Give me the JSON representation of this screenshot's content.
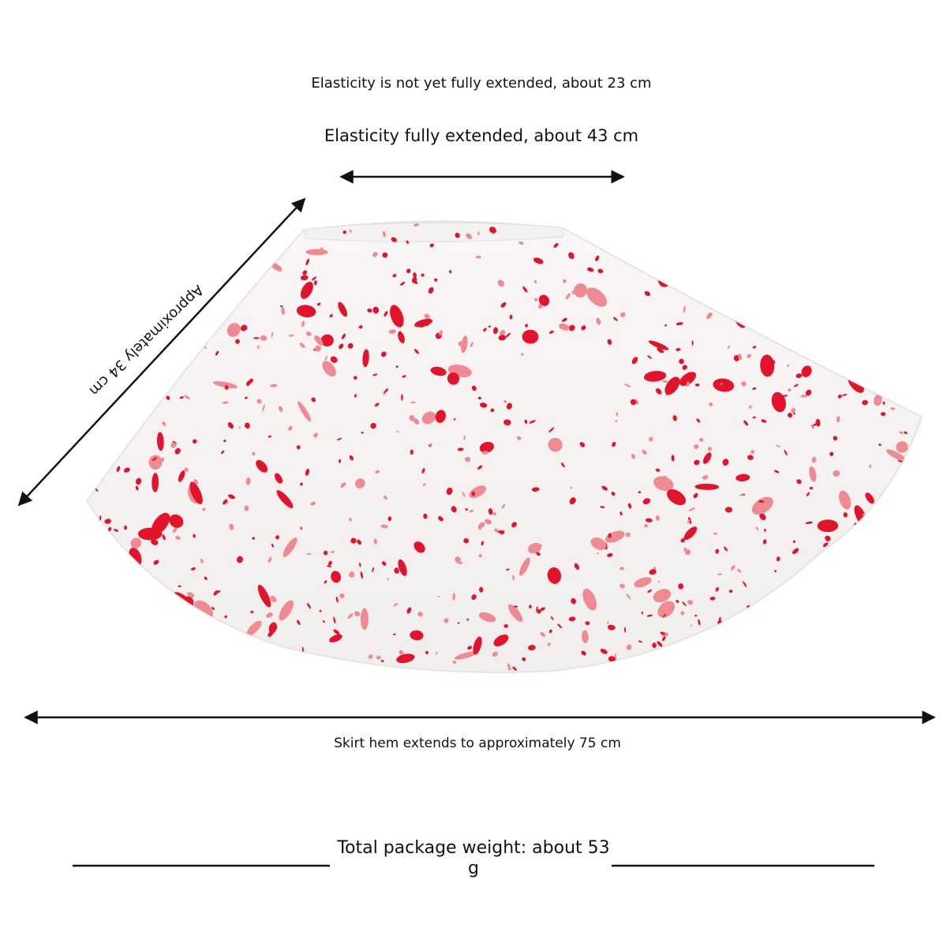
{
  "labels": {
    "waist_relaxed": "Elasticity is not yet fully extended, about 23 cm",
    "waist_extended": "Elasticity fully extended, about 43 cm",
    "length": "Approximately 34 cm",
    "hem": "Skirt hem extends to approximately 75 cm",
    "weight": "Total package weight: about 53 g"
  }
}
